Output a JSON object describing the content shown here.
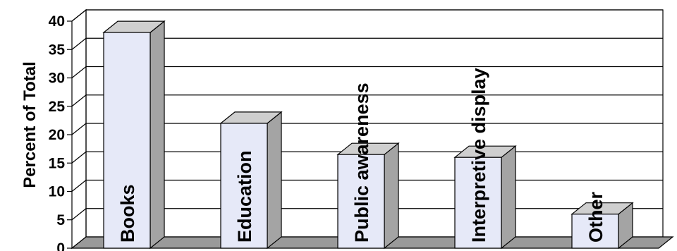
{
  "chart_data": {
    "type": "bar",
    "style": "3d-column",
    "title": "",
    "xlabel": "",
    "ylabel": "Percent of Total",
    "ylim": [
      0,
      40
    ],
    "yticks": [
      0,
      5,
      10,
      15,
      20,
      25,
      30,
      35,
      40
    ],
    "grid": true,
    "legend": "none",
    "categories": [
      "Books",
      "Education",
      "Public awareness",
      "Interpretive display",
      "Other"
    ],
    "values": [
      38,
      22,
      16.5,
      16,
      6
    ],
    "colors": {
      "bar_front": "#e6e9f8",
      "bar_side": "#a4a4a4",
      "bar_top": "#cfcfcf",
      "floor": "#9a9a9a",
      "grid": "#000000"
    }
  }
}
